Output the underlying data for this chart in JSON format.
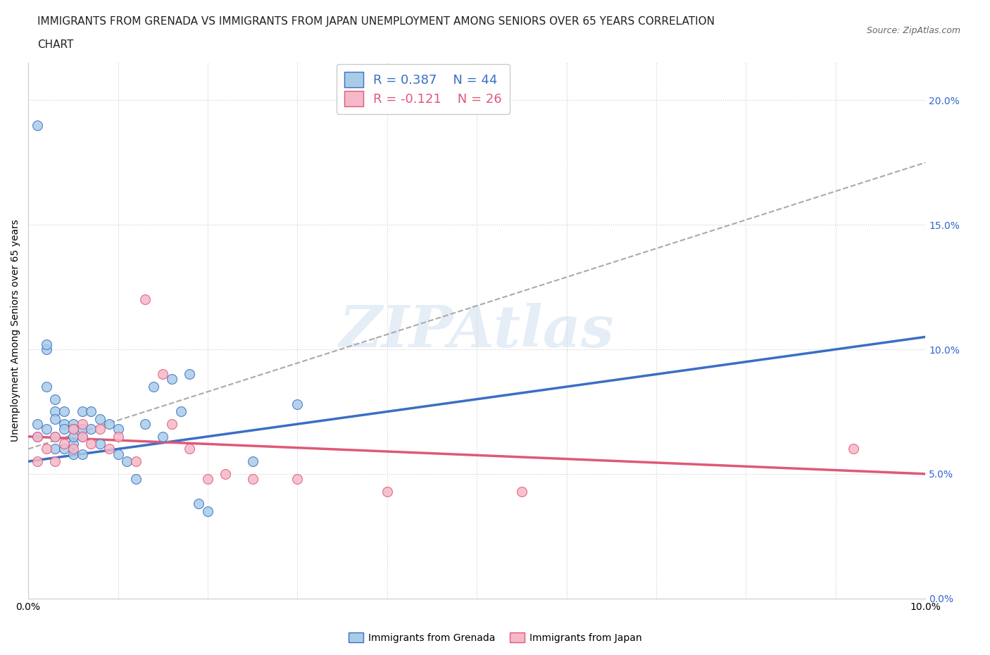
{
  "title_line1": "IMMIGRANTS FROM GRENADA VS IMMIGRANTS FROM JAPAN UNEMPLOYMENT AMONG SENIORS OVER 65 YEARS CORRELATION",
  "title_line2": "CHART",
  "source_text": "Source: ZipAtlas.com",
  "ylabel": "Unemployment Among Seniors over 65 years",
  "xlim": [
    0.0,
    0.1
  ],
  "ylim": [
    0.0,
    0.215
  ],
  "xticks": [
    0.0,
    0.01,
    0.02,
    0.03,
    0.04,
    0.05,
    0.06,
    0.07,
    0.08,
    0.09,
    0.1
  ],
  "yticks": [
    0.0,
    0.05,
    0.1,
    0.15,
    0.2
  ],
  "ytick_labels": [
    "0.0%",
    "5.0%",
    "10.0%",
    "15.0%",
    "20.0%"
  ],
  "xtick_labels": [
    "0.0%",
    "",
    "",
    "",
    "",
    "",
    "",
    "",
    "",
    "",
    "10.0%"
  ],
  "R_grenada": 0.387,
  "N_grenada": 44,
  "R_japan": -0.121,
  "N_japan": 26,
  "color_grenada": "#a8cce8",
  "color_japan": "#f5b8c8",
  "color_grenada_line": "#3a6fc4",
  "color_japan_line": "#e05878",
  "color_trendline_dashed": "#aaaaaa",
  "watermark_color": "#ccddf0",
  "grenada_points_x": [
    0.001,
    0.001,
    0.001,
    0.002,
    0.002,
    0.002,
    0.002,
    0.003,
    0.003,
    0.003,
    0.003,
    0.003,
    0.004,
    0.004,
    0.004,
    0.004,
    0.005,
    0.005,
    0.005,
    0.005,
    0.005,
    0.006,
    0.006,
    0.006,
    0.006,
    0.007,
    0.007,
    0.008,
    0.008,
    0.009,
    0.01,
    0.01,
    0.011,
    0.012,
    0.013,
    0.014,
    0.015,
    0.016,
    0.017,
    0.018,
    0.019,
    0.02,
    0.025,
    0.03
  ],
  "grenada_points_y": [
    0.19,
    0.065,
    0.07,
    0.1,
    0.102,
    0.085,
    0.068,
    0.075,
    0.08,
    0.065,
    0.06,
    0.072,
    0.07,
    0.075,
    0.06,
    0.068,
    0.07,
    0.068,
    0.062,
    0.065,
    0.058,
    0.065,
    0.068,
    0.075,
    0.058,
    0.068,
    0.075,
    0.072,
    0.062,
    0.07,
    0.068,
    0.058,
    0.055,
    0.048,
    0.07,
    0.085,
    0.065,
    0.088,
    0.075,
    0.09,
    0.038,
    0.035,
    0.055,
    0.078
  ],
  "japan_points_x": [
    0.001,
    0.001,
    0.002,
    0.003,
    0.003,
    0.004,
    0.005,
    0.005,
    0.006,
    0.006,
    0.007,
    0.008,
    0.009,
    0.01,
    0.012,
    0.013,
    0.015,
    0.016,
    0.018,
    0.02,
    0.022,
    0.025,
    0.03,
    0.04,
    0.055,
    0.092
  ],
  "japan_points_y": [
    0.065,
    0.055,
    0.06,
    0.065,
    0.055,
    0.062,
    0.068,
    0.06,
    0.07,
    0.065,
    0.062,
    0.068,
    0.06,
    0.065,
    0.055,
    0.12,
    0.09,
    0.07,
    0.06,
    0.048,
    0.05,
    0.048,
    0.048,
    0.043,
    0.043,
    0.06
  ],
  "grenada_trendline": [
    0.055,
    0.105
  ],
  "japan_trendline": [
    0.065,
    0.05
  ],
  "dashed_trendline": [
    0.06,
    0.175
  ],
  "background_color": "#ffffff",
  "title_fontsize": 11,
  "axis_label_fontsize": 10,
  "tick_fontsize": 10
}
